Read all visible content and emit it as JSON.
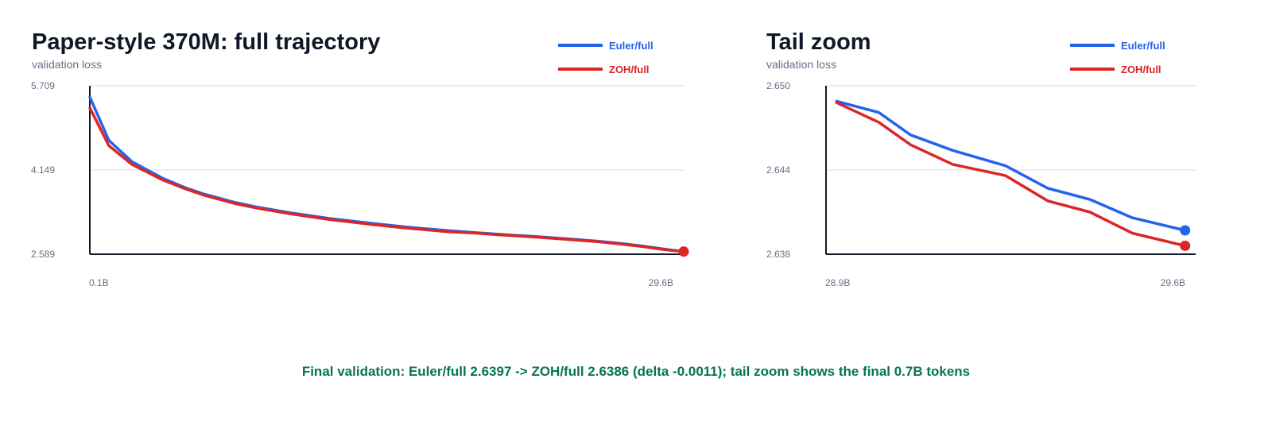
{
  "chart_data": [
    {
      "type": "line",
      "title": "Paper-style 370M: full trajectory",
      "ylabel": "validation loss",
      "xlabel": "",
      "ylim": [
        2.589,
        5.709
      ],
      "y_ticks": [
        "5.709",
        "4.149",
        "2.589"
      ],
      "x_ticks": [
        "0.1B",
        "29.6B"
      ],
      "xlim": [
        0.1,
        29.6
      ],
      "grid": true,
      "legend_position": "top-right",
      "series": [
        {
          "name": "Euler/full",
          "color": "#2563eb",
          "x": [
            0.1,
            0.12,
            0.15,
            0.2,
            0.25,
            0.3,
            0.4,
            0.5,
            0.7,
            1.0,
            1.5,
            2,
            3,
            4,
            5,
            7,
            10,
            13,
            16,
            20,
            25,
            29.6
          ],
          "y": [
            5.5,
            4.7,
            4.3,
            4.0,
            3.82,
            3.7,
            3.55,
            3.46,
            3.35,
            3.25,
            3.16,
            3.1,
            3.03,
            2.99,
            2.96,
            2.92,
            2.87,
            2.83,
            2.79,
            2.74,
            2.68,
            2.6397
          ]
        },
        {
          "name": "ZOH/full",
          "color": "#dc2626",
          "x": [
            0.1,
            0.12,
            0.15,
            0.2,
            0.25,
            0.3,
            0.4,
            0.5,
            0.7,
            1.0,
            1.5,
            2,
            3,
            4,
            5,
            7,
            10,
            13,
            16,
            20,
            25,
            29.6
          ],
          "y": [
            5.3,
            4.6,
            4.25,
            3.97,
            3.8,
            3.68,
            3.53,
            3.44,
            3.33,
            3.23,
            3.14,
            3.08,
            3.01,
            2.98,
            2.95,
            2.91,
            2.86,
            2.82,
            2.78,
            2.73,
            2.67,
            2.6386
          ],
          "end_marker": true
        }
      ]
    },
    {
      "type": "line",
      "title": "Tail zoom",
      "ylabel": "validation loss",
      "xlabel": "",
      "ylim": [
        2.638,
        2.65
      ],
      "y_ticks": [
        "2.650",
        "2.644",
        "2.638"
      ],
      "x_ticks": [
        "28.9B",
        "29.6B"
      ],
      "xlim": [
        28.9,
        29.6
      ],
      "grid": true,
      "legend_position": "top-right",
      "series": [
        {
          "name": "Euler/full",
          "color": "#2563eb",
          "x": [
            28.92,
            29.0,
            29.06,
            29.14,
            29.24,
            29.32,
            29.4,
            29.48,
            29.58
          ],
          "y": [
            2.6489,
            2.6481,
            2.6465,
            2.6454,
            2.6443,
            2.6427,
            2.6419,
            2.6406,
            2.6397
          ],
          "end_marker": true
        },
        {
          "name": "ZOH/full",
          "color": "#dc2626",
          "x": [
            28.92,
            29.0,
            29.06,
            29.14,
            29.24,
            29.32,
            29.4,
            29.48,
            29.58
          ],
          "y": [
            2.6488,
            2.6474,
            2.6458,
            2.6444,
            2.6436,
            2.6418,
            2.641,
            2.6395,
            2.6386
          ],
          "end_marker": true
        }
      ]
    }
  ],
  "footer": "Final validation: Euler/full 2.6397 -> ZOH/full 2.6386 (delta -0.0011); tail zoom shows the final 0.7B tokens"
}
